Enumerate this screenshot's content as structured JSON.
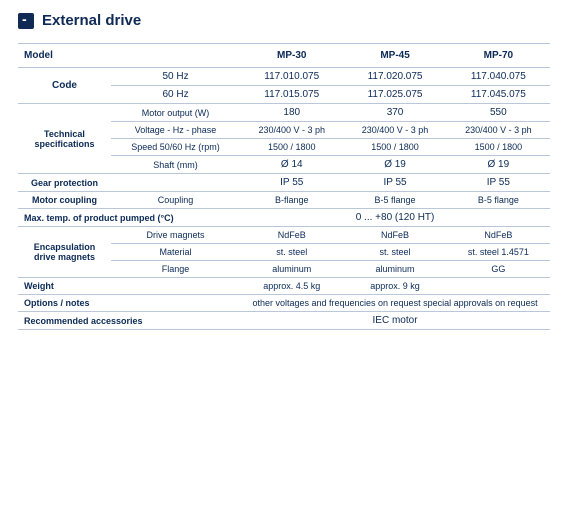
{
  "header": {
    "title": "External drive"
  },
  "table": {
    "colhead": {
      "blank": "",
      "model": "Model",
      "a": "MP-30",
      "b": "MP-45",
      "c": "MP-70"
    },
    "rows": {
      "code": {
        "label": "Code",
        "sub": "50 Hz",
        "a": "117.010.075",
        "b": "117.020.075",
        "c": "117.040.075"
      },
      "code2": {
        "sub": "60 Hz",
        "a": "117.015.075",
        "b": "117.025.075",
        "c": "117.045.075"
      },
      "motor": {
        "label": "",
        "sub": "Motor output (W)",
        "a": "180",
        "b": "370",
        "c": "550"
      },
      "tech": {
        "label": "Technical specifications",
        "sub": "Voltage - Hz - phase",
        "a": "230/400 V - 3 ph",
        "b": "230/400 V - 3 ph",
        "c": "230/400 V - 3 ph"
      },
      "speed": {
        "sub": "Speed 50/60 Hz (rpm)",
        "a": "1500 / 1800",
        "b": "1500 / 1800",
        "c": "1500 / 1800"
      },
      "shaft": {
        "sub": "Shaft (mm)",
        "a": "Ø 14",
        "b": "Ø 19",
        "c": "Ø 19"
      },
      "pg": {
        "label": "Gear protection",
        "sub": "",
        "a": "IP 55",
        "b": "IP 55",
        "c": "IP 55"
      },
      "coupl": {
        "label": "Motor coupling",
        "sub": "Coupling",
        "a": "B-flange",
        "b": "B-5 flange",
        "c": "B-5 flange"
      },
      "temp": {
        "label": "Max. temp. of product pumped (°C)",
        "a": "0 ... +80 (120 HT)"
      },
      "drive": {
        "label": "Drive magnets",
        "sub": "",
        "a": "NdFeB",
        "b": "NdFeB",
        "cd": "NdFeB"
      },
      "enc": {
        "label": "Encapsulation drive magnets",
        "sub": "Material",
        "a": "st. steel",
        "b": "st. steel",
        "cd": "st. steel 1.4571"
      },
      "flg": {
        "sub": "Flange",
        "a": "aluminum",
        "b": "aluminum",
        "cd": "GG"
      },
      "weight": {
        "label": "Weight",
        "sub": "",
        "a": "approx. 4.5 kg",
        "b": "approx. 9 kg",
        "c": ""
      },
      "options": {
        "label": "Options / notes",
        "a": "other voltages and frequencies on request special approvals on request"
      },
      "access": {
        "label": "Recommended accessories",
        "a": "IEC motor"
      }
    }
  },
  "style": {
    "text_color": "#0b2a55",
    "border_color": "#b9c7d8",
    "header_bg": "#102a56",
    "font_size_body": 10,
    "font_size_header": 15
  }
}
